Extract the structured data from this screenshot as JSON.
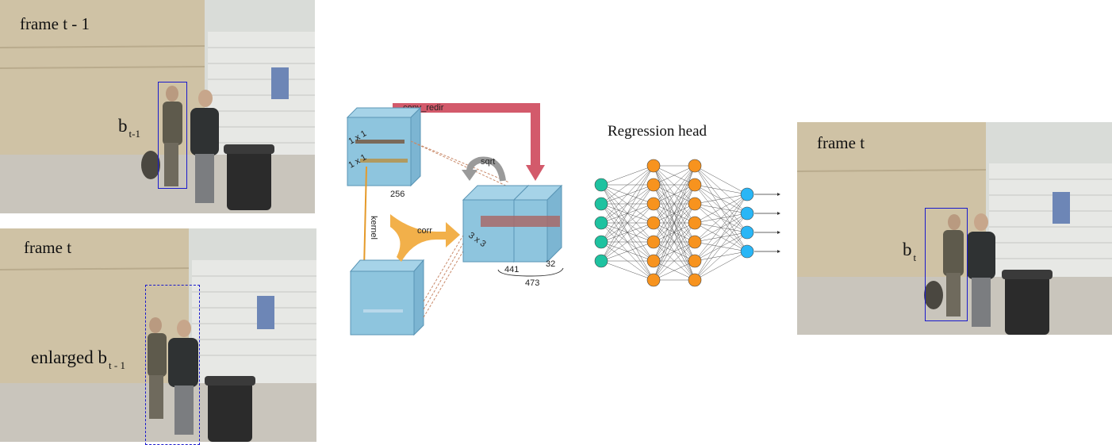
{
  "frames": {
    "prev": {
      "title": "frame t - 1",
      "box_main": "b",
      "box_sub": "t-1"
    },
    "search": {
      "title": "frame t",
      "box_main": "enlarged b",
      "box_sub": "t - 1"
    },
    "result": {
      "title": "frame t",
      "box_main": "b",
      "box_sub": "t"
    }
  },
  "network": {
    "conv_redir": "conv_redir",
    "sqrt": "sqrt",
    "kernel": "kernel",
    "corr": "corr",
    "conv1": "1 x 1",
    "conv2": "1 x 1",
    "conv3": "3 x 3",
    "dim_256": "256",
    "dim_441": "441",
    "dim_32": "32",
    "dim_473": "473"
  },
  "regression": {
    "title": "Regression head",
    "layers": [
      5,
      7,
      7,
      4
    ]
  },
  "colors": {
    "box": "#1a1acc",
    "cube": "#8ec5de",
    "arrow_red": "#d35a6b",
    "arrow_orange": "#f2b04a",
    "node_input": "#1ec2a0",
    "node_hidden": "#f7931e",
    "node_output": "#29b6f6"
  }
}
